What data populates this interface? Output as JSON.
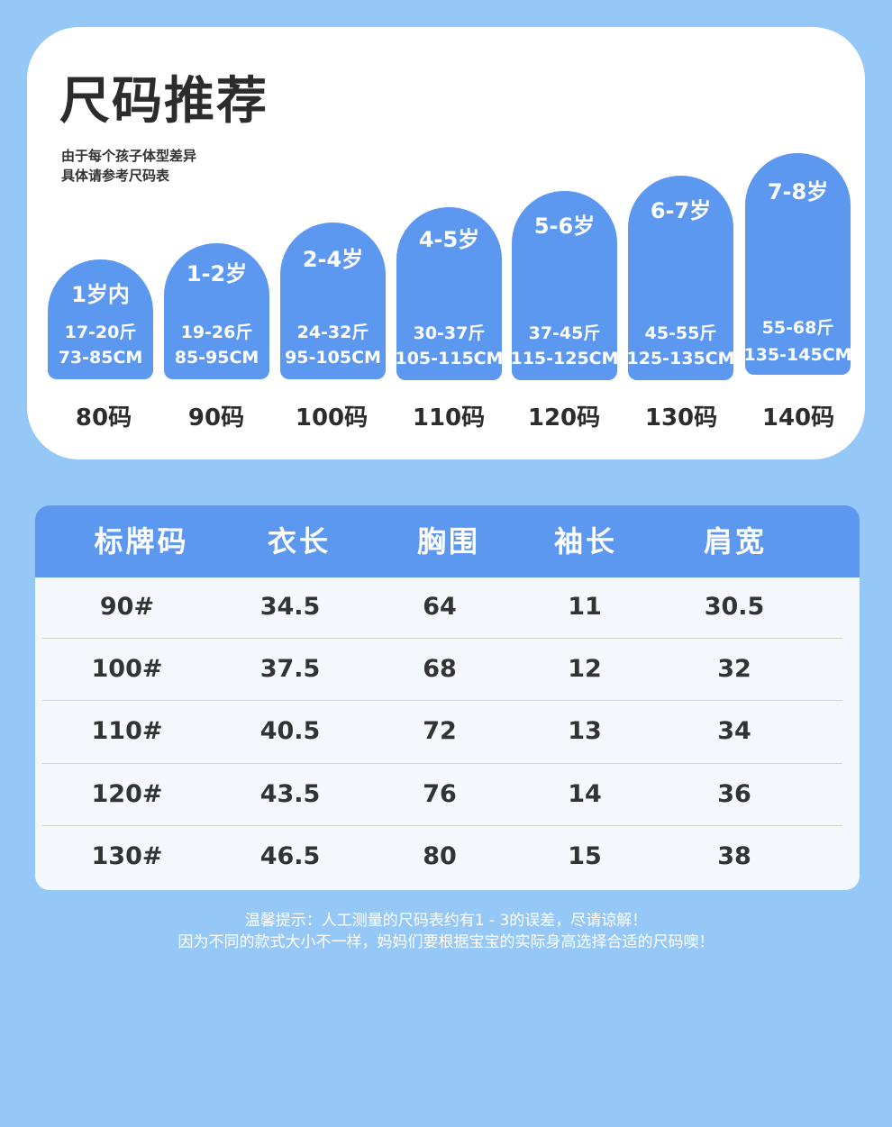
{
  "recommend": {
    "title": "尺码推荐",
    "note_line1": "由于每个孩子体型差异",
    "note_line2": "具体请参考尺码表",
    "items": [
      {
        "age": "1岁内",
        "weight": "17-20斤",
        "height": "73-85CM",
        "size": "80码"
      },
      {
        "age": "1-2岁",
        "weight": "19-26斤",
        "height": "85-95CM",
        "size": "90码"
      },
      {
        "age": "2-4岁",
        "weight": "24-32斤",
        "height": "95-105CM",
        "size": "100码"
      },
      {
        "age": "4-5岁",
        "weight": "30-37斤",
        "height": "105-115CM",
        "size": "110码"
      },
      {
        "age": "5-6岁",
        "weight": "37-45斤",
        "height": "115-125CM",
        "size": "120码"
      },
      {
        "age": "6-7岁",
        "weight": "45-55斤",
        "height": "125-135CM",
        "size": "130码"
      },
      {
        "age": "7-8岁",
        "weight": "55-68斤",
        "height": "135-145CM",
        "size": "140码"
      }
    ]
  },
  "table": {
    "headers": [
      "标牌码",
      "衣长",
      "胸围",
      "袖长",
      "肩宽"
    ],
    "rows": [
      [
        "90#",
        "34.5",
        "64",
        "11",
        "30.5"
      ],
      [
        "100#",
        "37.5",
        "68",
        "12",
        "32"
      ],
      [
        "110#",
        "40.5",
        "72",
        "13",
        "34"
      ],
      [
        "120#",
        "43.5",
        "76",
        "14",
        "36"
      ],
      [
        "130#",
        "46.5",
        "80",
        "15",
        "38"
      ]
    ]
  },
  "footer": {
    "line1": "温馨提示：人工测量的尺码表约有1 - 3的误差，尽请谅解！",
    "line2": "因为不同的款式大小不一样，妈妈们要根据宝宝的实际身高选择合适的尺码噢！"
  },
  "colors": {
    "background": "#96c8f7",
    "accent": "#5d98f0",
    "card": "#ffffff",
    "table_body": "#f4f8fd"
  }
}
